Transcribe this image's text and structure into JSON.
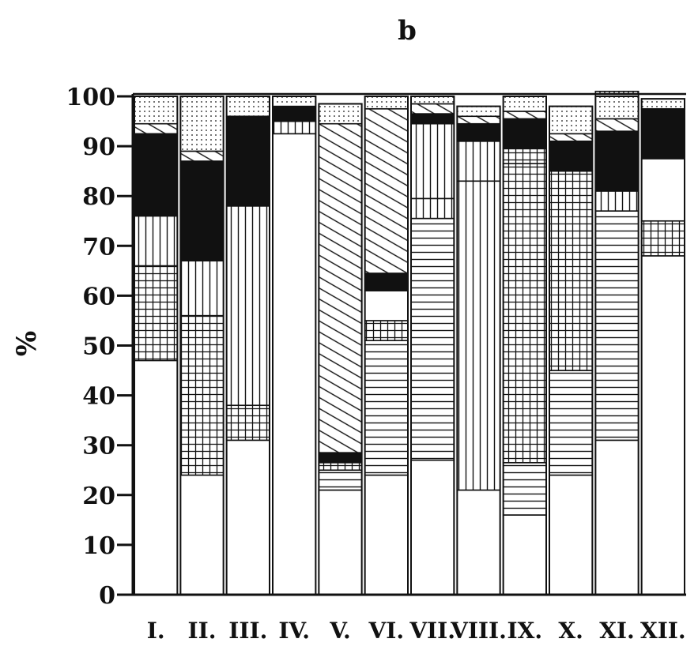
{
  "chart_data": {
    "type": "bar",
    "stacked": true,
    "title": "b",
    "ylabel": "%",
    "xlabel": "",
    "ylim": [
      0,
      100
    ],
    "yticks": [
      0,
      10,
      20,
      30,
      40,
      50,
      60,
      70,
      80,
      90,
      100
    ],
    "categories": [
      "I.",
      "II.",
      "III.",
      "IV.",
      "V.",
      "VI.",
      "VII.",
      "VIII.",
      "IX.",
      "X.",
      "XI.",
      "XII."
    ],
    "grid": false,
    "legend": "none",
    "series": [
      {
        "pattern": "blank",
        "values": [
          47,
          24,
          31,
          92.5,
          21,
          24,
          27,
          21,
          16,
          24,
          31,
          68
        ]
      },
      {
        "pattern": "horizontal",
        "values": [
          0,
          0,
          0,
          0,
          4,
          27,
          48.5,
          0,
          10.5,
          21,
          46,
          0
        ]
      },
      {
        "pattern": "grid",
        "values": [
          19,
          32,
          7,
          0,
          1.5,
          4,
          0,
          0,
          60,
          40,
          0,
          7
        ]
      },
      {
        "pattern": "vertical",
        "values": [
          10,
          11,
          40,
          2.5,
          0,
          0,
          4,
          62,
          0,
          0,
          4,
          0
        ]
      },
      {
        "pattern": "blank",
        "values": [
          0,
          0,
          0,
          0,
          0,
          6,
          0,
          0,
          0,
          0,
          0,
          12.5
        ]
      },
      {
        "pattern": "vertical",
        "values": [
          0,
          0,
          0,
          0,
          0,
          0,
          15,
          8,
          0,
          0,
          0,
          0
        ]
      },
      {
        "pattern": "grid",
        "values": [
          0,
          0,
          0,
          0,
          0,
          0,
          0,
          0,
          3,
          0,
          0,
          0
        ]
      },
      {
        "pattern": "black",
        "values": [
          16.5,
          20,
          18,
          3,
          2,
          3.5,
          2,
          3.5,
          6,
          6,
          12,
          10
        ]
      },
      {
        "pattern": "diagonal",
        "values": [
          2,
          2,
          0,
          0,
          66,
          33,
          2,
          1.5,
          1.5,
          1.5,
          2.5,
          0
        ]
      },
      {
        "pattern": "dotted",
        "values": [
          5.5,
          11,
          4,
          2,
          4,
          2.5,
          1.5,
          2,
          3,
          5.5,
          5.5,
          2
        ]
      }
    ]
  }
}
